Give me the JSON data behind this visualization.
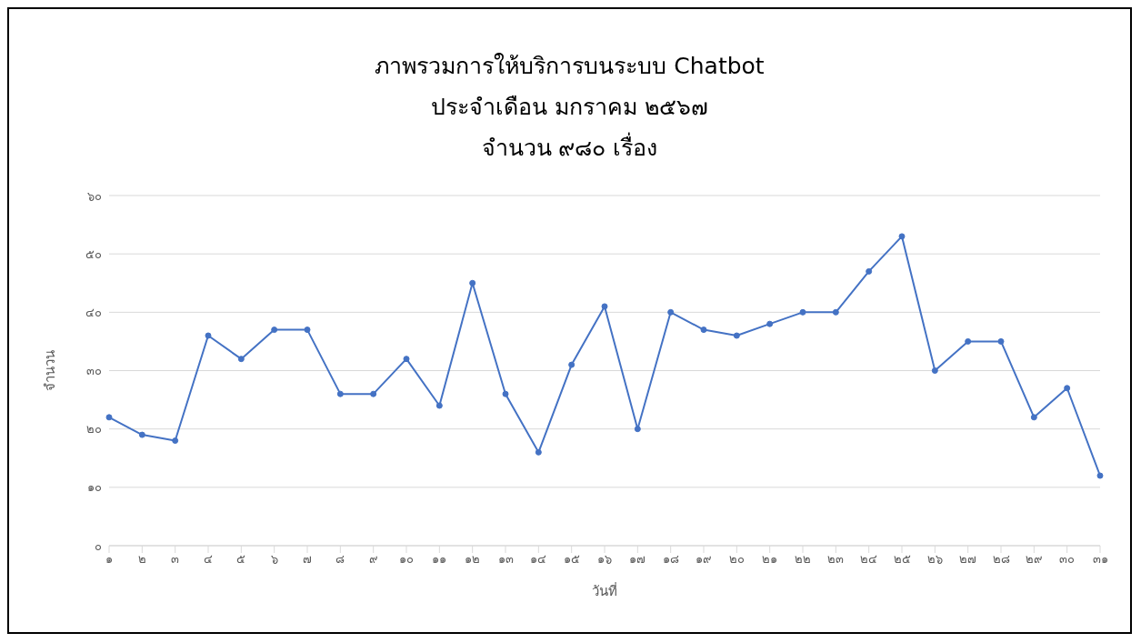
{
  "chart_data": {
    "type": "line",
    "title": "ภาพรวมการให้บริการบนระบบ Chatbot\nประจำเดือน มกราคม ๒๕๖๗\nจำนวน ๙๘๐ เรื่อง",
    "xlabel": "วันที่",
    "ylabel": "จำนวน",
    "categories": [
      "๑",
      "๒",
      "๓",
      "๔",
      "๕",
      "๖",
      "๗",
      "๘",
      "๙",
      "๑๐",
      "๑๑",
      "๑๒",
      "๑๓",
      "๑๔",
      "๑๕",
      "๑๖",
      "๑๗",
      "๑๘",
      "๑๙",
      "๒๐",
      "๒๑",
      "๒๒",
      "๒๓",
      "๒๔",
      "๒๕",
      "๒๖",
      "๒๗",
      "๒๘",
      "๒๙",
      "๓๐",
      "๓๑"
    ],
    "series": [
      {
        "color": "#4472c4",
        "values": [
          22,
          19,
          18,
          36,
          32,
          37,
          37,
          26,
          26,
          32,
          24,
          45,
          26,
          16,
          31,
          41,
          20,
          40,
          37,
          36,
          38,
          40,
          40,
          47,
          53,
          30,
          35,
          35,
          22,
          27,
          12
        ]
      }
    ],
    "ylim": [
      0,
      60
    ],
    "yticks": [
      {
        "value": 0,
        "label": "๐"
      },
      {
        "value": 10,
        "label": "๑๐"
      },
      {
        "value": 20,
        "label": "๒๐"
      },
      {
        "value": 30,
        "label": "๓๐"
      },
      {
        "value": 40,
        "label": "๔๐"
      },
      {
        "value": 50,
        "label": "๕๐"
      },
      {
        "value": 60,
        "label": "๖๐"
      }
    ],
    "grid": "y",
    "legend": false,
    "marker": "circle",
    "line_style": "solid"
  }
}
